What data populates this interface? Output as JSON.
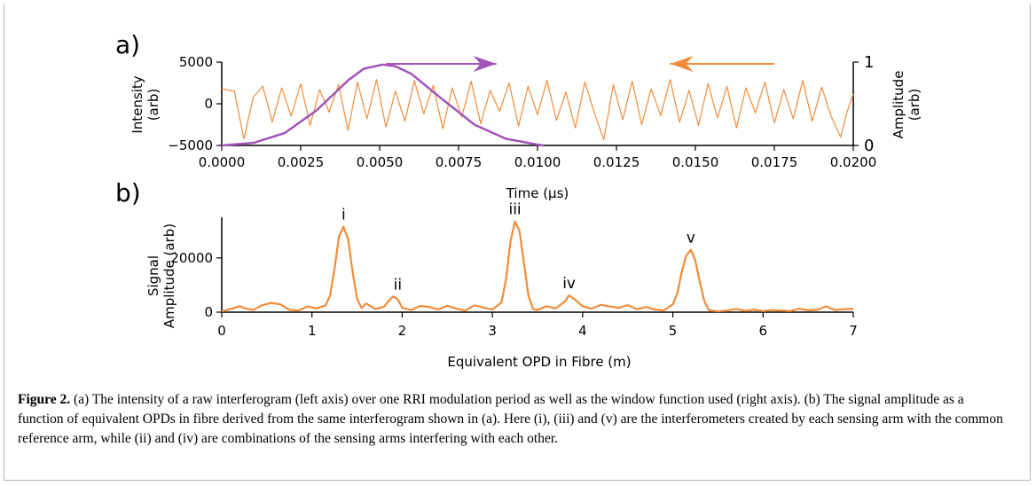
{
  "colors": {
    "orange": "#f28c3a",
    "purple": "#a155b9",
    "axis": "#000000"
  },
  "chart_data": [
    {
      "panel_label": "a)",
      "type": "line",
      "xlabel": "Time (μs)",
      "ylabel_lines": [
        "Intensity",
        "(arb)"
      ],
      "y2label_lines": [
        "Amplitude",
        "(arb)"
      ],
      "xlim": [
        0,
        0.02
      ],
      "ylim": [
        -5000,
        5000
      ],
      "y2lim": [
        0,
        1
      ],
      "x_ticks": [
        0.0,
        0.0025,
        0.005,
        0.0075,
        0.01,
        0.0125,
        0.015,
        0.0175,
        0.02
      ],
      "x_tick_labels": [
        "0.0000",
        "0.0025",
        "0.0050",
        "0.0075",
        "0.0100",
        "0.0125",
        "0.0150",
        "0.0175",
        "0.0200"
      ],
      "y_ticks": [
        5000,
        0,
        -5000
      ],
      "y_tick_labels": [
        "5000",
        "0",
        "−5000"
      ],
      "y2_ticks": [
        1,
        0
      ],
      "y2_tick_labels": [
        "1",
        "0"
      ],
      "series": [
        {
          "axis": "left",
          "color": "#f28c3a",
          "x": [
            0.0,
            0.0004,
            0.0007,
            0.001,
            0.0013,
            0.0016,
            0.0019,
            0.0022,
            0.0025,
            0.0028,
            0.0031,
            0.0034,
            0.0037,
            0.004,
            0.0043,
            0.0046,
            0.0049,
            0.0052,
            0.0055,
            0.0058,
            0.0061,
            0.0064,
            0.0067,
            0.007,
            0.0073,
            0.0076,
            0.0079,
            0.0082,
            0.0085,
            0.0088,
            0.0091,
            0.0094,
            0.0097,
            0.01,
            0.0103,
            0.0106,
            0.0109,
            0.0112,
            0.0115,
            0.0118,
            0.0121,
            0.0124,
            0.0127,
            0.013,
            0.0133,
            0.0136,
            0.0139,
            0.0142,
            0.0145,
            0.0148,
            0.0151,
            0.0154,
            0.0157,
            0.016,
            0.0163,
            0.0166,
            0.0169,
            0.0172,
            0.0175,
            0.0178,
            0.0181,
            0.0184,
            0.0187,
            0.019,
            0.0193,
            0.0196,
            0.0198,
            0.02
          ],
          "y": [
            1800,
            1500,
            -4200,
            800,
            2100,
            -2200,
            1900,
            -1500,
            2400,
            -2600,
            1700,
            -1000,
            2300,
            -3200,
            2600,
            -1800,
            2900,
            -2800,
            1500,
            -2100,
            2800,
            -1200,
            2200,
            -3000,
            1900,
            -1600,
            2700,
            -2400,
            1600,
            -900,
            2500,
            -2700,
            2100,
            -1300,
            2800,
            -2000,
            1400,
            -2900,
            2600,
            -1100,
            -4300,
            2300,
            -1900,
            2700,
            -2500,
            1800,
            -1400,
            2900,
            -2200,
            1600,
            -2600,
            2400,
            -1700,
            2100,
            -2900,
            1900,
            -1100,
            2600,
            -2300,
            1700,
            -1800,
            2800,
            -2100,
            2000,
            -1500,
            -4000,
            -1000,
            1200
          ]
        },
        {
          "axis": "right",
          "color": "#a155b9",
          "x": [
            0.0,
            0.001,
            0.002,
            0.003,
            0.004,
            0.0045,
            0.0051,
            0.0055,
            0.006,
            0.007,
            0.008,
            0.009,
            0.01,
            0.0102
          ],
          "y": [
            0.0,
            0.03,
            0.15,
            0.42,
            0.78,
            0.92,
            0.97,
            0.95,
            0.86,
            0.55,
            0.25,
            0.08,
            0.01,
            0.0
          ]
        }
      ],
      "annotations": [
        {
          "type": "arrow",
          "direction": "right",
          "color": "#a155b9",
          "x_start": 0.0052,
          "x_end": 0.0087,
          "y": 1.0
        },
        {
          "type": "arrow",
          "direction": "left",
          "color": "#f28c3a",
          "x_start": 0.0175,
          "x_end": 0.0142,
          "y": 1.0
        }
      ]
    },
    {
      "panel_label": "b)",
      "type": "line",
      "xlabel": "Equivalent OPD in Fibre (m)",
      "ylabel_lines": [
        "Signal",
        "Amplitude (arb)"
      ],
      "xlim": [
        0,
        7
      ],
      "ylim": [
        0,
        35000
      ],
      "x_ticks": [
        0,
        1,
        2,
        3,
        4,
        5,
        6,
        7
      ],
      "x_tick_labels": [
        "0",
        "1",
        "2",
        "3",
        "4",
        "5",
        "6",
        "7"
      ],
      "y_ticks": [
        20000,
        0
      ],
      "y_tick_labels": [
        "20000",
        "0"
      ],
      "series": [
        {
          "color": "#f28c3a",
          "x": [
            0.0,
            0.1,
            0.2,
            0.25,
            0.35,
            0.45,
            0.55,
            0.65,
            0.75,
            0.85,
            0.95,
            1.05,
            1.15,
            1.2,
            1.25,
            1.3,
            1.35,
            1.4,
            1.45,
            1.5,
            1.55,
            1.6,
            1.7,
            1.8,
            1.85,
            1.9,
            1.95,
            2.0,
            2.1,
            2.2,
            2.3,
            2.4,
            2.5,
            2.6,
            2.7,
            2.8,
            2.9,
            3.0,
            3.1,
            3.15,
            3.2,
            3.25,
            3.3,
            3.35,
            3.4,
            3.45,
            3.5,
            3.6,
            3.7,
            3.8,
            3.85,
            3.9,
            4.0,
            4.1,
            4.2,
            4.3,
            4.4,
            4.5,
            4.6,
            4.7,
            4.8,
            4.9,
            5.0,
            5.05,
            5.1,
            5.15,
            5.2,
            5.25,
            5.3,
            5.35,
            5.4,
            5.5,
            5.6,
            5.7,
            5.8,
            5.9,
            6.0,
            6.1,
            6.2,
            6.3,
            6.4,
            6.5,
            6.6,
            6.7,
            6.8,
            6.9,
            7.0
          ],
          "y": [
            300,
            1200,
            2200,
            1500,
            800,
            2600,
            3400,
            2900,
            900,
            600,
            2100,
            1400,
            2500,
            6000,
            16000,
            28000,
            31500,
            27000,
            15000,
            5000,
            1500,
            3200,
            1200,
            2000,
            4200,
            5800,
            4800,
            1600,
            800,
            2300,
            1900,
            1000,
            2400,
            1300,
            600,
            2500,
            1700,
            1000,
            3500,
            12000,
            26000,
            33500,
            30000,
            18000,
            6000,
            1200,
            800,
            2200,
            1400,
            3800,
            6200,
            5000,
            2200,
            1300,
            2700,
            2100,
            1600,
            2600,
            1100,
            1900,
            1000,
            700,
            2900,
            7000,
            15000,
            21000,
            23000,
            19000,
            11000,
            4000,
            700,
            300,
            600,
            1200,
            500,
            900,
            400,
            800,
            600,
            400,
            1300,
            700,
            900,
            2100,
            800,
            1100,
            1300
          ]
        }
      ],
      "annotations": [
        {
          "type": "label",
          "text": "i",
          "x": 1.35,
          "y": 31500
        },
        {
          "type": "label",
          "text": "ii",
          "x": 1.95,
          "y": 5800
        },
        {
          "type": "label",
          "text": "iii",
          "x": 3.25,
          "y": 33500
        },
        {
          "type": "label",
          "text": "iv",
          "x": 3.85,
          "y": 6200
        },
        {
          "type": "label",
          "text": "v",
          "x": 5.2,
          "y": 23000
        }
      ]
    }
  ],
  "caption": {
    "lead": "Figure 2.",
    "text": " (a) The intensity of a raw interferogram (left axis) over one RRI modulation period as well as the window function used (right axis). (b) The signal amplitude as a function of equivalent OPDs in fibre derived from the same interferogram shown in (a). Here (i), (iii) and (v) are the interferometers created by each sensing arm with the common reference arm, while (ii) and (iv) are combinations of the sensing arms interfering with each other."
  }
}
